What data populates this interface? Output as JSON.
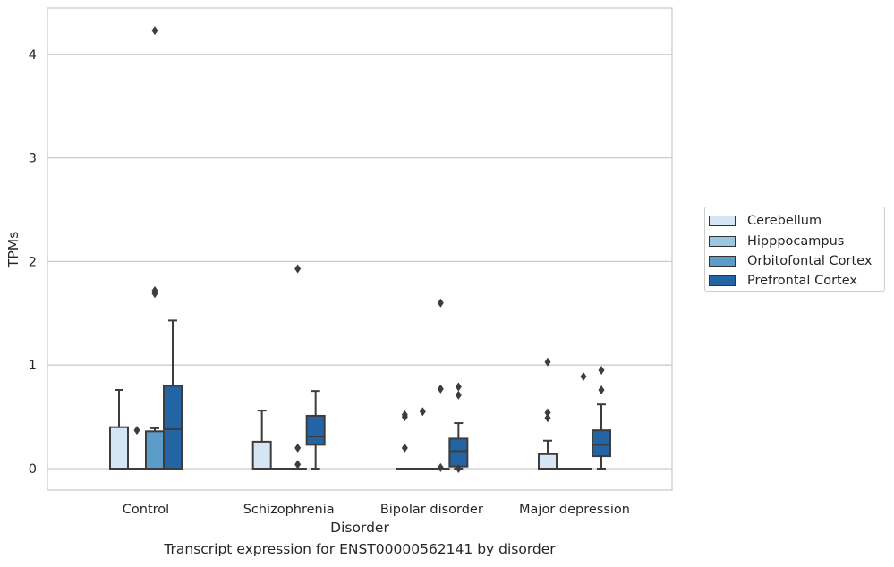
{
  "chart_data": {
    "type": "box",
    "title": "",
    "caption": "Transcript expression for ENST00000562141 by disorder",
    "xlabel": "Disorder",
    "ylabel": "TPMs",
    "ylim": [
      -0.21,
      4.42
    ],
    "yticks": [
      0,
      1,
      2,
      3,
      4
    ],
    "grid": "horizontal",
    "legend_position": "right",
    "categories": [
      "Control",
      "Schizophrenia",
      "Bipolar disorder",
      "Major depression"
    ],
    "series": [
      {
        "name": "Cerebellum",
        "color": "#d6e5f3",
        "boxes": [
          {
            "q1": 0,
            "median": 0,
            "q3": 0.4,
            "whislo": 0,
            "whishi": 0.76,
            "fliers": []
          },
          {
            "q1": 0,
            "median": 0,
            "q3": 0.26,
            "whislo": 0,
            "whishi": 0.56,
            "fliers": []
          },
          {
            "q1": 0,
            "median": 0,
            "q3": 0,
            "whislo": 0,
            "whishi": 0,
            "fliers": [
              0.2,
              0.5,
              0.52
            ]
          },
          {
            "q1": 0,
            "median": 0,
            "q3": 0.14,
            "whislo": 0,
            "whishi": 0.27,
            "fliers": [
              0.49,
              0.54,
              1.03
            ]
          }
        ]
      },
      {
        "name": "Hipppocampus",
        "color": "#9bc6e0",
        "boxes": [
          {
            "q1": 0,
            "median": 0,
            "q3": 0,
            "whislo": 0,
            "whishi": 0,
            "fliers": [
              0.37
            ]
          },
          {
            "q1": 0,
            "median": 0,
            "q3": 0,
            "whislo": 0,
            "whishi": 0,
            "fliers": []
          },
          {
            "q1": 0,
            "median": 0,
            "q3": 0,
            "whislo": 0,
            "whishi": 0,
            "fliers": [
              0.55
            ]
          },
          {
            "q1": 0,
            "median": 0,
            "q3": 0,
            "whislo": 0,
            "whishi": 0,
            "fliers": []
          }
        ]
      },
      {
        "name": "Orbitofontal Cortex",
        "color": "#5b9cc9",
        "boxes": [
          {
            "q1": 0,
            "median": 0,
            "q3": 0.36,
            "whislo": 0,
            "whishi": 0.39,
            "fliers": [
              1.69,
              1.72,
              4.23
            ]
          },
          {
            "q1": 0,
            "median": 0,
            "q3": 0,
            "whislo": 0,
            "whishi": 0,
            "fliers": [
              0.04,
              0.2,
              1.93
            ]
          },
          {
            "q1": 0,
            "median": 0,
            "q3": 0,
            "whislo": 0,
            "whishi": 0,
            "fliers": [
              0.01,
              0.77,
              1.6
            ]
          },
          {
            "q1": 0,
            "median": 0,
            "q3": 0,
            "whislo": 0,
            "whishi": 0,
            "fliers": [
              0.89
            ]
          }
        ]
      },
      {
        "name": "Prefrontal Cortex",
        "color": "#2364a4",
        "boxes": [
          {
            "q1": 0,
            "median": 0.38,
            "q3": 0.8,
            "whislo": 0,
            "whishi": 1.43,
            "fliers": []
          },
          {
            "q1": 0.23,
            "median": 0.31,
            "q3": 0.51,
            "whislo": 0,
            "whishi": 0.75,
            "fliers": []
          },
          {
            "q1": 0.02,
            "median": 0.17,
            "q3": 0.29,
            "whislo": 0,
            "whishi": 0.44,
            "fliers": [
              0.0,
              0.71,
              0.79
            ]
          },
          {
            "q1": 0.12,
            "median": 0.23,
            "q3": 0.37,
            "whislo": 0,
            "whishi": 0.62,
            "fliers": [
              0.76,
              0.95
            ]
          }
        ]
      }
    ]
  }
}
